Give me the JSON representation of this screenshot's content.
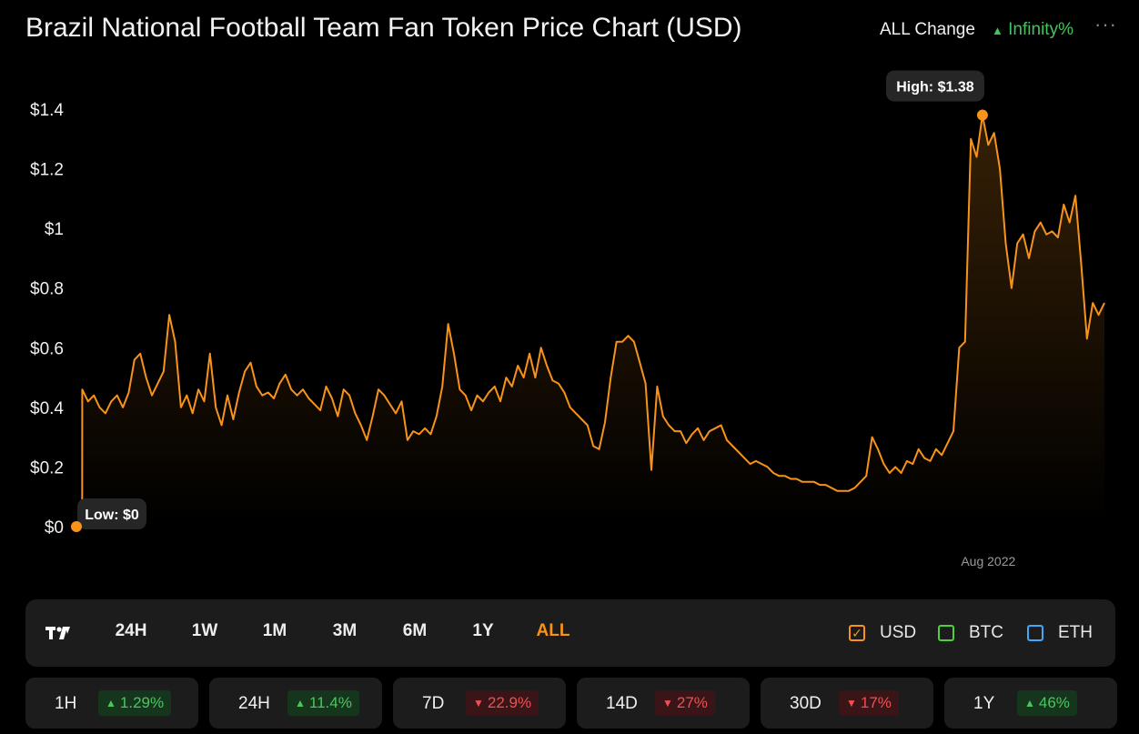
{
  "header": {
    "title": "Brazil National Football Team Fan Token Price Chart (USD)",
    "change_label": "ALL Change",
    "change_value": "Infinity%",
    "change_arrow": "▲",
    "more_icon": "···"
  },
  "colors": {
    "line": "#f7931a",
    "up": "#43c45a",
    "down": "#f05050",
    "usd_box": "#f7931a",
    "btc_box": "#4cd137",
    "eth_box": "#3fa9f5",
    "panel_bg": "#1c1c1c"
  },
  "chart_data": {
    "type": "area",
    "x_tick_label": "Aug 2022",
    "x_tick_index": 157,
    "yticks": [
      "$0",
      "$0.2",
      "$0.4",
      "$0.6",
      "$0.8",
      "$1",
      "$1.2",
      "$1.4"
    ],
    "ylim": [
      0,
      1.45
    ],
    "grid": false,
    "annotations": {
      "high_label": "High: $1.38",
      "low_label": "Low: $0",
      "high_value": 1.38,
      "low_value": 0
    },
    "values": [
      0,
      0.46,
      0.42,
      0.44,
      0.4,
      0.38,
      0.42,
      0.44,
      0.4,
      0.45,
      0.56,
      0.58,
      0.5,
      0.44,
      0.48,
      0.52,
      0.71,
      0.62,
      0.4,
      0.44,
      0.38,
      0.46,
      0.42,
      0.58,
      0.4,
      0.34,
      0.44,
      0.36,
      0.45,
      0.52,
      0.55,
      0.47,
      0.44,
      0.45,
      0.43,
      0.48,
      0.51,
      0.46,
      0.44,
      0.46,
      0.43,
      0.41,
      0.39,
      0.47,
      0.43,
      0.37,
      0.46,
      0.44,
      0.38,
      0.34,
      0.29,
      0.37,
      0.46,
      0.44,
      0.41,
      0.38,
      0.42,
      0.29,
      0.32,
      0.31,
      0.33,
      0.31,
      0.37,
      0.47,
      0.68,
      0.58,
      0.46,
      0.44,
      0.39,
      0.44,
      0.42,
      0.45,
      0.47,
      0.42,
      0.5,
      0.47,
      0.54,
      0.5,
      0.58,
      0.5,
      0.6,
      0.54,
      0.49,
      0.48,
      0.45,
      0.4,
      0.38,
      0.36,
      0.34,
      0.27,
      0.26,
      0.35,
      0.5,
      0.62,
      0.62,
      0.64,
      0.62,
      0.55,
      0.48,
      0.19,
      0.47,
      0.37,
      0.34,
      0.32,
      0.32,
      0.28,
      0.31,
      0.33,
      0.29,
      0.32,
      0.33,
      0.34,
      0.29,
      0.27,
      0.25,
      0.23,
      0.21,
      0.22,
      0.21,
      0.2,
      0.18,
      0.17,
      0.17,
      0.16,
      0.16,
      0.15,
      0.15,
      0.15,
      0.14,
      0.14,
      0.13,
      0.12,
      0.12,
      0.12,
      0.13,
      0.15,
      0.17,
      0.3,
      0.26,
      0.21,
      0.18,
      0.2,
      0.18,
      0.22,
      0.21,
      0.26,
      0.23,
      0.22,
      0.26,
      0.24,
      0.28,
      0.32,
      0.6,
      0.62,
      1.3,
      1.24,
      1.38,
      1.28,
      1.32,
      1.2,
      0.95,
      0.8,
      0.95,
      0.98,
      0.9,
      0.99,
      1.02,
      0.98,
      0.99,
      0.97,
      1.08,
      1.02,
      1.11,
      0.88,
      0.63,
      0.75,
      0.71,
      0.75
    ]
  },
  "ranges": [
    {
      "label": "24H"
    },
    {
      "label": "1W"
    },
    {
      "label": "1M"
    },
    {
      "label": "3M"
    },
    {
      "label": "6M"
    },
    {
      "label": "1Y"
    },
    {
      "label": "ALL"
    }
  ],
  "active_range": "ALL",
  "currencies": [
    {
      "label": "USD",
      "checked": true
    },
    {
      "label": "BTC",
      "checked": false
    },
    {
      "label": "ETH",
      "checked": false
    }
  ],
  "stats": [
    {
      "period": "1H",
      "direction": "up",
      "arrow": "▲",
      "value": "1.29%"
    },
    {
      "period": "24H",
      "direction": "up",
      "arrow": "▲",
      "value": "11.4%"
    },
    {
      "period": "7D",
      "direction": "down",
      "arrow": "▼",
      "value": "22.9%"
    },
    {
      "period": "14D",
      "direction": "down",
      "arrow": "▼",
      "value": "27%"
    },
    {
      "period": "30D",
      "direction": "down",
      "arrow": "▼",
      "value": "17%"
    },
    {
      "period": "1Y",
      "direction": "up",
      "arrow": "▲",
      "value": "46%"
    }
  ]
}
